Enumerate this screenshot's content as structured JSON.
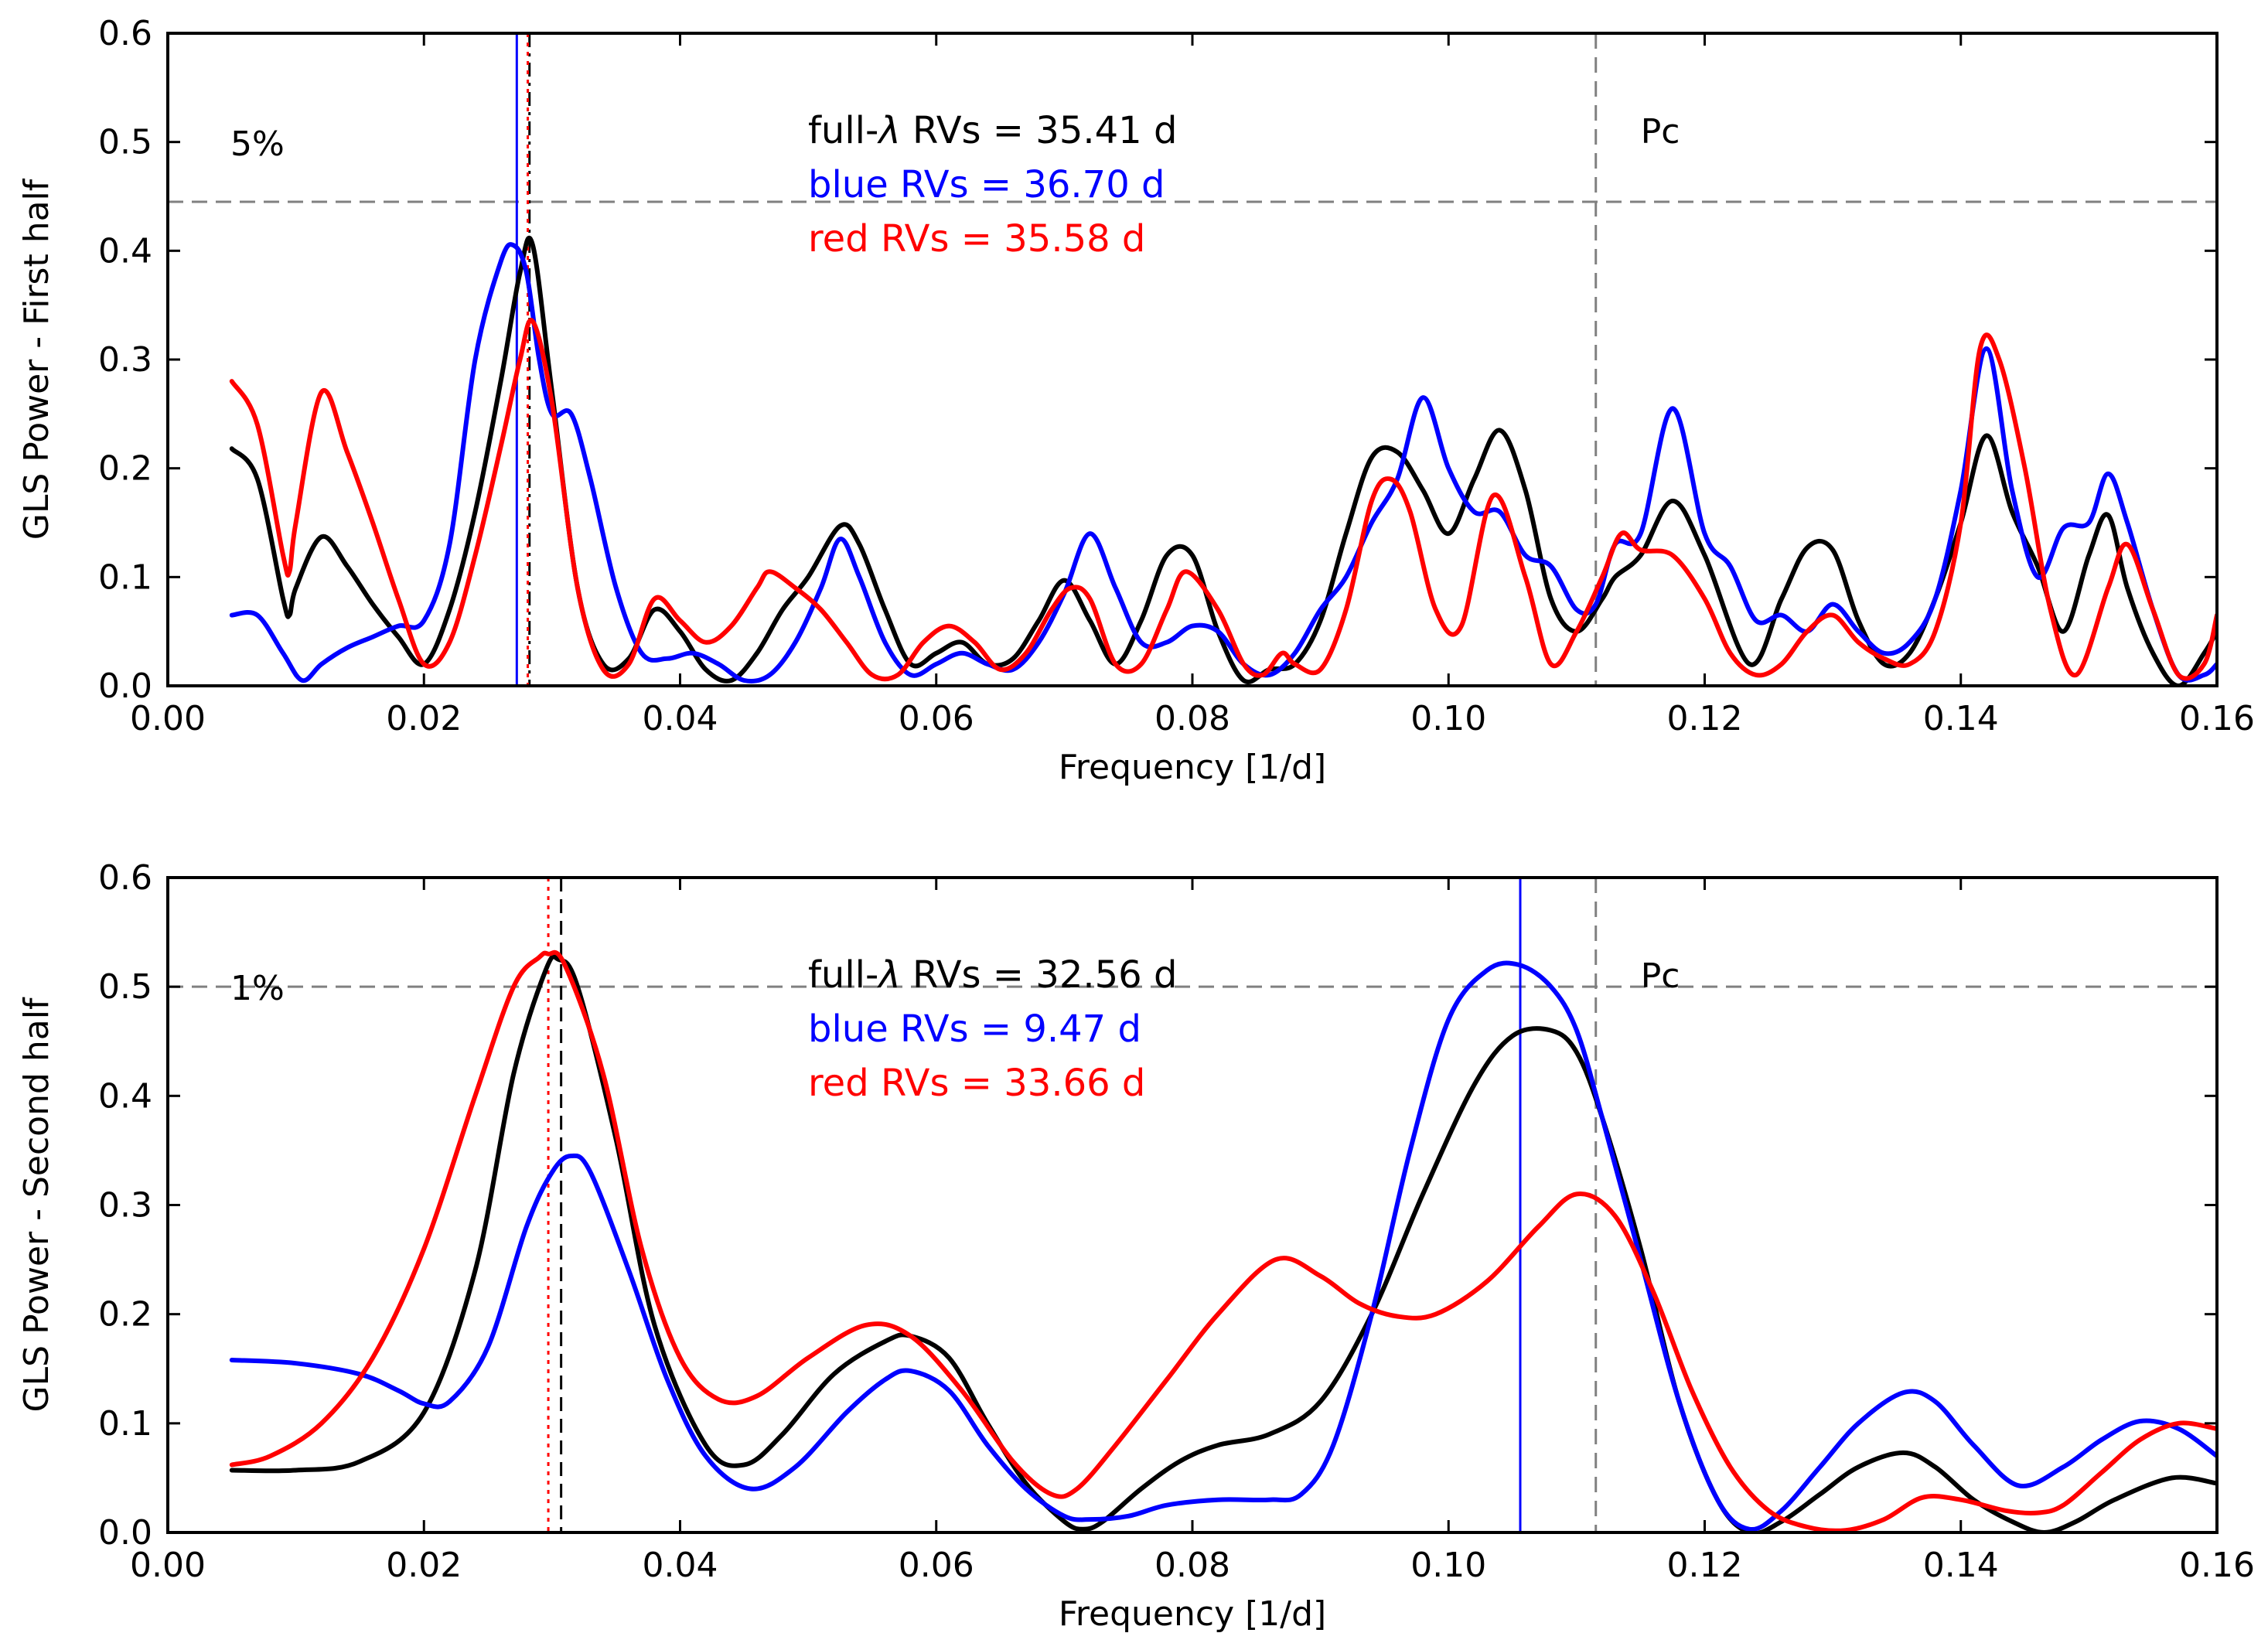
{
  "colors": {
    "full": "#000000",
    "blue": "#0000ff",
    "red": "#ff0000",
    "threshold": "#808080"
  },
  "chart_data": [
    {
      "type": "line",
      "title": "",
      "xlabel": "Frequency [1/d]",
      "ylabel": "GLS Power - First half",
      "xlim": [
        0.0,
        0.16
      ],
      "ylim": [
        0.0,
        0.6
      ],
      "xticks": [
        0.0,
        0.02,
        0.04,
        0.06,
        0.08,
        0.1,
        0.12,
        0.14,
        0.16
      ],
      "xtick_labels": [
        "0.00",
        "0.02",
        "0.04",
        "0.06",
        "0.08",
        "0.10",
        "0.12",
        "0.14",
        "0.16"
      ],
      "yticks": [
        0.0,
        0.1,
        0.2,
        0.3,
        0.4,
        0.5,
        0.6
      ],
      "ytick_labels": [
        "0.0",
        "0.1",
        "0.2",
        "0.3",
        "0.4",
        "0.5",
        "0.6"
      ],
      "fap_level": 0.445,
      "fap_label": "5%",
      "pc_freq": 0.1115,
      "pc_label": "Pc",
      "legend": [
        {
          "key": "full",
          "prefix": "full-",
          "symbol": "λ",
          "text": " RVs = 35.41 d"
        },
        {
          "key": "blue",
          "text": "blue RVs = 36.70 d"
        },
        {
          "key": "red",
          "text": "red RVs = 35.58 d"
        }
      ],
      "peak_lines": [
        {
          "key": "blue",
          "freq": 0.02725,
          "style": "solid"
        },
        {
          "key": "full",
          "freq": 0.02824,
          "style": "dashdot"
        },
        {
          "key": "red",
          "freq": 0.02811,
          "style": "dotted"
        }
      ],
      "series": [
        {
          "name": "full-λ RVs",
          "key": "full",
          "x": [
            0.005,
            0.007,
            0.009,
            0.0095,
            0.01,
            0.012,
            0.014,
            0.016,
            0.018,
            0.02,
            0.022,
            0.024,
            0.026,
            0.0275,
            0.0285,
            0.03,
            0.032,
            0.034,
            0.036,
            0.038,
            0.04,
            0.042,
            0.044,
            0.046,
            0.048,
            0.05,
            0.0525,
            0.054,
            0.056,
            0.058,
            0.06,
            0.062,
            0.064,
            0.066,
            0.068,
            0.07,
            0.072,
            0.074,
            0.076,
            0.078,
            0.08,
            0.082,
            0.084,
            0.086,
            0.088,
            0.09,
            0.092,
            0.094,
            0.096,
            0.098,
            0.1,
            0.102,
            0.104,
            0.106,
            0.108,
            0.11,
            0.112,
            0.113,
            0.115,
            0.1175,
            0.12,
            0.1235,
            0.126,
            0.128,
            0.13,
            0.132,
            0.134,
            0.136,
            0.138,
            0.14,
            0.142,
            0.144,
            0.146,
            0.148,
            0.15,
            0.1515,
            0.153,
            0.155,
            0.157,
            0.159,
            0.16
          ],
          "y": [
            0.218,
            0.19,
            0.08,
            0.065,
            0.09,
            0.137,
            0.11,
            0.075,
            0.045,
            0.02,
            0.07,
            0.16,
            0.28,
            0.38,
            0.405,
            0.27,
            0.09,
            0.02,
            0.025,
            0.07,
            0.05,
            0.015,
            0.005,
            0.03,
            0.07,
            0.1,
            0.147,
            0.13,
            0.07,
            0.02,
            0.03,
            0.04,
            0.02,
            0.025,
            0.06,
            0.097,
            0.06,
            0.02,
            0.06,
            0.12,
            0.12,
            0.05,
            0.005,
            0.015,
            0.02,
            0.06,
            0.14,
            0.21,
            0.215,
            0.18,
            0.14,
            0.19,
            0.235,
            0.18,
            0.08,
            0.05,
            0.08,
            0.1,
            0.12,
            0.17,
            0.12,
            0.02,
            0.08,
            0.127,
            0.125,
            0.06,
            0.02,
            0.03,
            0.08,
            0.15,
            0.23,
            0.16,
            0.11,
            0.05,
            0.12,
            0.157,
            0.09,
            0.03,
            0.0,
            0.03,
            0.05
          ]
        },
        {
          "name": "blue RVs",
          "key": "blue",
          "x": [
            0.005,
            0.007,
            0.009,
            0.0105,
            0.012,
            0.014,
            0.016,
            0.018,
            0.02,
            0.022,
            0.024,
            0.026,
            0.027,
            0.028,
            0.029,
            0.03,
            0.0315,
            0.033,
            0.035,
            0.037,
            0.039,
            0.041,
            0.043,
            0.045,
            0.047,
            0.049,
            0.051,
            0.0525,
            0.054,
            0.056,
            0.058,
            0.06,
            0.062,
            0.064,
            0.066,
            0.068,
            0.07,
            0.072,
            0.074,
            0.076,
            0.078,
            0.08,
            0.082,
            0.084,
            0.086,
            0.088,
            0.09,
            0.092,
            0.094,
            0.096,
            0.098,
            0.1,
            0.102,
            0.104,
            0.106,
            0.108,
            0.11,
            0.1115,
            0.113,
            0.115,
            0.1175,
            0.12,
            0.122,
            0.124,
            0.126,
            0.128,
            0.13,
            0.132,
            0.134,
            0.136,
            0.138,
            0.14,
            0.142,
            0.144,
            0.146,
            0.148,
            0.15,
            0.1515,
            0.153,
            0.155,
            0.157,
            0.159,
            0.16
          ],
          "y": [
            0.065,
            0.065,
            0.03,
            0.005,
            0.02,
            0.035,
            0.045,
            0.055,
            0.06,
            0.13,
            0.3,
            0.39,
            0.405,
            0.38,
            0.3,
            0.25,
            0.25,
            0.19,
            0.09,
            0.03,
            0.025,
            0.03,
            0.02,
            0.005,
            0.01,
            0.04,
            0.09,
            0.135,
            0.1,
            0.04,
            0.01,
            0.02,
            0.03,
            0.02,
            0.015,
            0.04,
            0.085,
            0.14,
            0.09,
            0.04,
            0.04,
            0.055,
            0.05,
            0.02,
            0.01,
            0.03,
            0.07,
            0.1,
            0.15,
            0.19,
            0.265,
            0.2,
            0.16,
            0.16,
            0.12,
            0.11,
            0.07,
            0.075,
            0.13,
            0.14,
            0.255,
            0.14,
            0.11,
            0.06,
            0.065,
            0.05,
            0.075,
            0.05,
            0.03,
            0.04,
            0.08,
            0.18,
            0.31,
            0.18,
            0.1,
            0.145,
            0.15,
            0.195,
            0.15,
            0.07,
            0.01,
            0.01,
            0.02
          ]
        },
        {
          "name": "red RVs",
          "key": "red",
          "x": [
            0.005,
            0.007,
            0.009,
            0.0095,
            0.01,
            0.012,
            0.014,
            0.016,
            0.018,
            0.02,
            0.022,
            0.024,
            0.026,
            0.0275,
            0.0285,
            0.03,
            0.032,
            0.034,
            0.036,
            0.038,
            0.04,
            0.042,
            0.044,
            0.046,
            0.047,
            0.049,
            0.051,
            0.053,
            0.055,
            0.057,
            0.059,
            0.061,
            0.063,
            0.065,
            0.067,
            0.069,
            0.0705,
            0.072,
            0.074,
            0.076,
            0.078,
            0.0795,
            0.082,
            0.084,
            0.0855,
            0.087,
            0.088,
            0.09,
            0.092,
            0.094,
            0.0955,
            0.097,
            0.099,
            0.101,
            0.1035,
            0.106,
            0.108,
            0.11,
            0.112,
            0.1135,
            0.115,
            0.1175,
            0.12,
            0.122,
            0.124,
            0.126,
            0.128,
            0.13,
            0.132,
            0.134,
            0.136,
            0.138,
            0.14,
            0.1415,
            0.143,
            0.145,
            0.147,
            0.149,
            0.1515,
            0.153,
            0.155,
            0.157,
            0.159,
            0.16
          ],
          "y": [
            0.28,
            0.24,
            0.12,
            0.105,
            0.15,
            0.27,
            0.215,
            0.15,
            0.08,
            0.02,
            0.04,
            0.12,
            0.22,
            0.3,
            0.335,
            0.26,
            0.09,
            0.015,
            0.02,
            0.08,
            0.06,
            0.04,
            0.055,
            0.09,
            0.105,
            0.09,
            0.07,
            0.04,
            0.01,
            0.01,
            0.04,
            0.055,
            0.04,
            0.015,
            0.03,
            0.07,
            0.09,
            0.08,
            0.02,
            0.02,
            0.07,
            0.105,
            0.07,
            0.02,
            0.01,
            0.03,
            0.02,
            0.015,
            0.07,
            0.17,
            0.19,
            0.16,
            0.07,
            0.055,
            0.175,
            0.1,
            0.02,
            0.05,
            0.1,
            0.14,
            0.125,
            0.12,
            0.08,
            0.03,
            0.01,
            0.02,
            0.05,
            0.065,
            0.04,
            0.025,
            0.02,
            0.05,
            0.15,
            0.31,
            0.3,
            0.2,
            0.07,
            0.01,
            0.09,
            0.13,
            0.07,
            0.01,
            0.02,
            0.065
          ]
        }
      ]
    },
    {
      "type": "line",
      "title": "",
      "xlabel": "Frequency [1/d]",
      "ylabel": "GLS Power - Second half",
      "xlim": [
        0.0,
        0.16
      ],
      "ylim": [
        0.0,
        0.6
      ],
      "xticks": [
        0.0,
        0.02,
        0.04,
        0.06,
        0.08,
        0.1,
        0.12,
        0.14,
        0.16
      ],
      "xtick_labels": [
        "0.00",
        "0.02",
        "0.04",
        "0.06",
        "0.08",
        "0.10",
        "0.12",
        "0.14",
        "0.16"
      ],
      "yticks": [
        0.0,
        0.1,
        0.2,
        0.3,
        0.4,
        0.5,
        0.6
      ],
      "ytick_labels": [
        "0.0",
        "0.1",
        "0.2",
        "0.3",
        "0.4",
        "0.5",
        "0.6"
      ],
      "fap_level": 0.5,
      "fap_label": "1%",
      "pc_freq": 0.1115,
      "pc_label": "Pc",
      "legend": [
        {
          "key": "full",
          "prefix": "full-",
          "symbol": "λ",
          "text": " RVs = 32.56 d"
        },
        {
          "key": "blue",
          "text": "blue RVs = 9.47 d"
        },
        {
          "key": "red",
          "text": "red RVs = 33.66 d"
        }
      ],
      "peak_lines": [
        {
          "key": "red",
          "freq": 0.02971,
          "style": "dotted"
        },
        {
          "key": "full",
          "freq": 0.03071,
          "style": "dashed"
        },
        {
          "key": "blue",
          "freq": 0.1056,
          "style": "solid"
        }
      ],
      "series": [
        {
          "name": "full-λ RVs",
          "key": "full",
          "x": [
            0.005,
            0.01,
            0.015,
            0.02,
            0.024,
            0.027,
            0.0295,
            0.0305,
            0.032,
            0.035,
            0.038,
            0.042,
            0.045,
            0.048,
            0.052,
            0.056,
            0.058,
            0.061,
            0.064,
            0.067,
            0.07,
            0.0715,
            0.073,
            0.076,
            0.079,
            0.082,
            0.086,
            0.09,
            0.094,
            0.098,
            0.102,
            0.105,
            0.108,
            0.11,
            0.112,
            0.115,
            0.118,
            0.121,
            0.1235,
            0.126,
            0.129,
            0.132,
            0.1355,
            0.138,
            0.141,
            0.144,
            0.1465,
            0.149,
            0.152,
            0.1565,
            0.16
          ],
          "y": [
            0.057,
            0.057,
            0.065,
            0.11,
            0.24,
            0.42,
            0.515,
            0.525,
            0.5,
            0.36,
            0.19,
            0.08,
            0.062,
            0.09,
            0.145,
            0.175,
            0.18,
            0.16,
            0.1,
            0.045,
            0.01,
            0.003,
            0.01,
            0.04,
            0.065,
            0.08,
            0.09,
            0.12,
            0.2,
            0.31,
            0.41,
            0.455,
            0.46,
            0.44,
            0.38,
            0.26,
            0.12,
            0.03,
            0.0,
            0.01,
            0.035,
            0.06,
            0.073,
            0.06,
            0.03,
            0.01,
            0.0,
            0.01,
            0.03,
            0.05,
            0.045
          ]
        },
        {
          "name": "blue RVs",
          "key": "blue",
          "x": [
            0.005,
            0.01,
            0.015,
            0.018,
            0.02,
            0.022,
            0.025,
            0.028,
            0.03,
            0.0315,
            0.033,
            0.036,
            0.039,
            0.042,
            0.0455,
            0.049,
            0.053,
            0.056,
            0.058,
            0.061,
            0.064,
            0.067,
            0.07,
            0.072,
            0.075,
            0.078,
            0.082,
            0.086,
            0.0885,
            0.091,
            0.094,
            0.097,
            0.1,
            0.103,
            0.1055,
            0.108,
            0.11,
            0.112,
            0.115,
            0.118,
            0.121,
            0.1235,
            0.126,
            0.129,
            0.132,
            0.1355,
            0.138,
            0.141,
            0.1445,
            0.148,
            0.151,
            0.154,
            0.157,
            0.16
          ],
          "y": [
            0.158,
            0.155,
            0.145,
            0.13,
            0.118,
            0.12,
            0.17,
            0.28,
            0.33,
            0.345,
            0.33,
            0.24,
            0.14,
            0.07,
            0.04,
            0.06,
            0.11,
            0.14,
            0.148,
            0.13,
            0.08,
            0.04,
            0.015,
            0.012,
            0.015,
            0.025,
            0.03,
            0.03,
            0.035,
            0.08,
            0.2,
            0.35,
            0.47,
            0.515,
            0.52,
            0.5,
            0.46,
            0.38,
            0.25,
            0.12,
            0.03,
            0.003,
            0.02,
            0.06,
            0.1,
            0.128,
            0.12,
            0.08,
            0.043,
            0.06,
            0.085,
            0.102,
            0.095,
            0.07
          ]
        },
        {
          "name": "red RVs",
          "key": "red",
          "x": [
            0.005,
            0.008,
            0.012,
            0.016,
            0.02,
            0.024,
            0.027,
            0.029,
            0.0297,
            0.031,
            0.034,
            0.037,
            0.04,
            0.043,
            0.046,
            0.05,
            0.0545,
            0.058,
            0.062,
            0.066,
            0.069,
            0.071,
            0.074,
            0.078,
            0.082,
            0.0865,
            0.09,
            0.093,
            0.096,
            0.099,
            0.103,
            0.107,
            0.11,
            0.113,
            0.116,
            0.119,
            0.122,
            0.125,
            0.128,
            0.131,
            0.134,
            0.137,
            0.14,
            0.1435,
            0.146,
            0.148,
            0.151,
            0.154,
            0.157,
            0.16
          ],
          "y": [
            0.062,
            0.07,
            0.1,
            0.16,
            0.26,
            0.4,
            0.5,
            0.527,
            0.53,
            0.52,
            0.42,
            0.26,
            0.16,
            0.122,
            0.125,
            0.16,
            0.19,
            0.18,
            0.13,
            0.065,
            0.035,
            0.04,
            0.08,
            0.14,
            0.2,
            0.25,
            0.235,
            0.21,
            0.198,
            0.2,
            0.23,
            0.28,
            0.31,
            0.29,
            0.22,
            0.13,
            0.06,
            0.02,
            0.005,
            0.002,
            0.012,
            0.032,
            0.03,
            0.02,
            0.018,
            0.025,
            0.055,
            0.085,
            0.1,
            0.095
          ]
        }
      ]
    }
  ]
}
